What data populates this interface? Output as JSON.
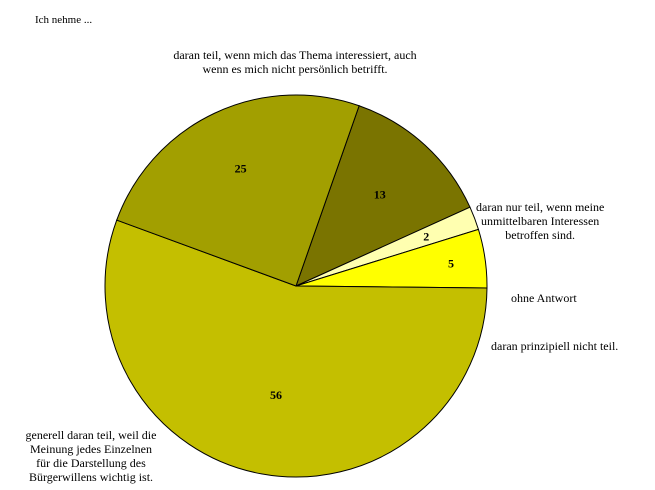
{
  "chart_data": {
    "type": "pie",
    "title": "Ich nehme ...",
    "slices": [
      {
        "label": "daran nur teil, wenn meine\nunmittelbaren Interessen\nbetroffen sind.",
        "value": 13,
        "color": "#7a7400"
      },
      {
        "label": "ohne Antwort",
        "value": 2,
        "color": "#ffffb0"
      },
      {
        "label": "daran prinzipiell nicht teil.",
        "value": 5,
        "color": "#ffff00"
      },
      {
        "label": "generell daran teil, weil die\nMeinung jedes Einzelnen\nfür die Darstellung des\nBürgerwillens wichtig ist.",
        "value": 56,
        "color": "#c4bf00"
      },
      {
        "label": "daran teil, wenn mich das Thema interessiert, auch\nwenn es mich nicht persönlich betrifft.",
        "value": 25,
        "color": "#a29f00"
      }
    ],
    "value_labels": [
      "13",
      "2",
      "5",
      "56",
      "25"
    ]
  }
}
